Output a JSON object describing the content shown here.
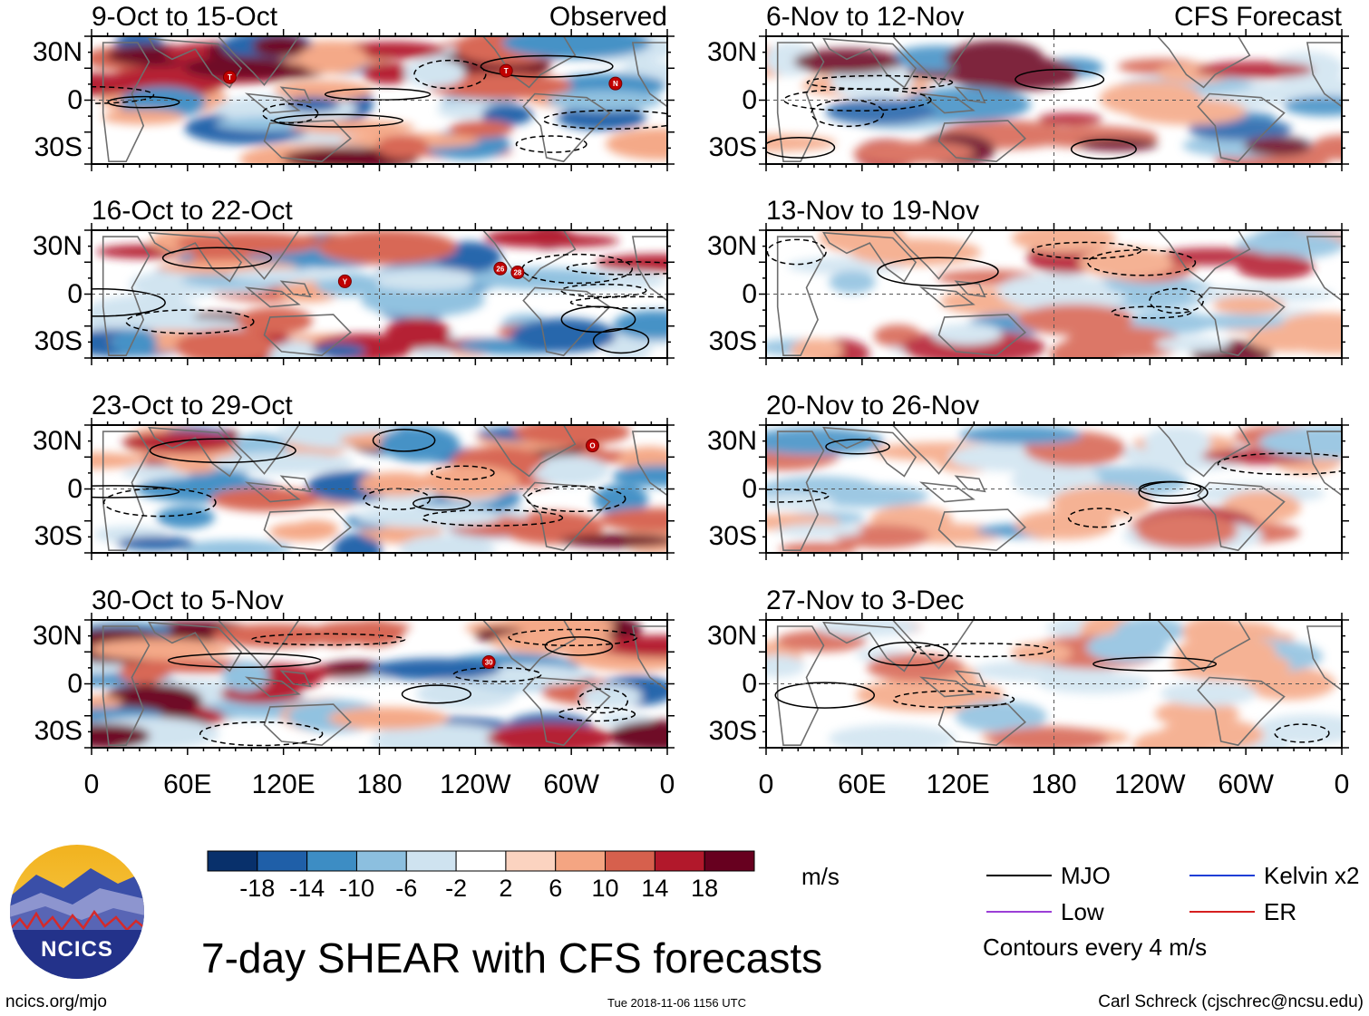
{
  "chart_data": {
    "type": "heatmap",
    "title": "7-day SHEAR with CFS forecasts",
    "units": "m/s",
    "contour_note": "Contours every 4 m/s",
    "x_ticks": [
      "0",
      "60E",
      "120E",
      "180",
      "120W",
      "60W",
      "0"
    ],
    "y_ticks": [
      "30N",
      "0",
      "30S"
    ],
    "colorbar": {
      "levels": [
        "-18",
        "-14",
        "-10",
        "-6",
        "-2",
        "2",
        "6",
        "10",
        "14",
        "18"
      ],
      "colors": [
        "#08306b",
        "#1f5fa8",
        "#3d8dc4",
        "#8cbfdf",
        "#cfe3f0",
        "#ffffff",
        "#fbd3c0",
        "#f4a582",
        "#d6604d",
        "#b2182b",
        "#67001f"
      ]
    },
    "legend": [
      {
        "label": "MJO",
        "color": "#000000"
      },
      {
        "label": "Kelvin x2",
        "color": "#1f3fd6"
      },
      {
        "label": "Low",
        "color": "#9b3fd6"
      },
      {
        "label": "ER",
        "color": "#d61f1f"
      }
    ],
    "panels": [
      {
        "period": "9-Oct to 15-Oct",
        "tag": "Observed",
        "storms": [
          "T",
          "T",
          "N"
        ]
      },
      {
        "period": "16-Oct to 22-Oct",
        "tag": "",
        "storms": [
          "Y",
          "26",
          "28"
        ]
      },
      {
        "period": "23-Oct to 29-Oct",
        "tag": "",
        "storms": [
          "O"
        ]
      },
      {
        "period": "30-Oct to 5-Nov",
        "tag": "",
        "storms": [
          "30"
        ]
      },
      {
        "period": "6-Nov to 12-Nov",
        "tag": "CFS Forecast",
        "storms": []
      },
      {
        "period": "13-Nov to 19-Nov",
        "tag": "",
        "storms": []
      },
      {
        "period": "20-Nov to 26-Nov",
        "tag": "",
        "storms": []
      },
      {
        "period": "27-Nov to 3-Dec",
        "tag": "",
        "storms": []
      }
    ]
  },
  "logo": {
    "text": "NCICS"
  },
  "footer": {
    "url": "ncics.org/mjo",
    "timestamp": "Tue 2018-11-06 1156 UTC",
    "credit": "Carl Schreck (cjschrec@ncsu.edu)"
  }
}
